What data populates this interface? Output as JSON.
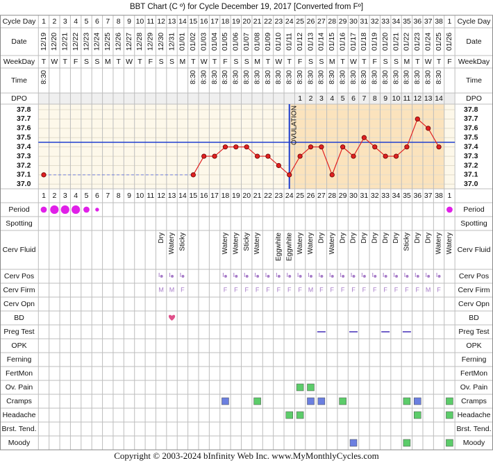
{
  "header": {
    "title": "BBT Chart (C º) for Cycle December 19, 2017  [Converted from Fº]"
  },
  "row_labels": [
    "Cycle Day",
    "Date",
    "WeekDay",
    "Time",
    "DPO",
    "Period",
    "Spotting",
    "Cerv Fluid",
    "Cerv Pos",
    "Cerv Firm",
    "Cerv Opn",
    "BD",
    "Preg Test",
    "OPK",
    "Ferning",
    "FertMon",
    "Ov. Pain",
    "Cramps",
    "Headache",
    "Brst. Tend.",
    "Moody"
  ],
  "columns": {
    "cycle_days": [
      1,
      2,
      3,
      4,
      5,
      6,
      7,
      8,
      9,
      10,
      11,
      12,
      13,
      14,
      15,
      16,
      17,
      18,
      19,
      20,
      21,
      22,
      23,
      24,
      25,
      26,
      27,
      28,
      29,
      30,
      31,
      32,
      33,
      34,
      35,
      36,
      37,
      38,
      1
    ],
    "dates": [
      "12/19",
      "12/20",
      "12/21",
      "12/22",
      "12/23",
      "12/24",
      "12/25",
      "12/26",
      "12/27",
      "12/28",
      "12/29",
      "12/30",
      "12/31",
      "01/01",
      "01/02",
      "01/03",
      "01/04",
      "01/05",
      "01/06",
      "01/07",
      "01/08",
      "01/09",
      "01/10",
      "01/11",
      "01/12",
      "01/13",
      "01/14",
      "01/15",
      "01/16",
      "01/17",
      "01/18",
      "01/19",
      "01/20",
      "01/21",
      "01/22",
      "01/23",
      "01/24",
      "01/25",
      "01/26"
    ],
    "weekdays": [
      "T",
      "W",
      "T",
      "F",
      "S",
      "S",
      "M",
      "T",
      "W",
      "T",
      "F",
      "S",
      "S",
      "M",
      "T",
      "W",
      "T",
      "F",
      "S",
      "S",
      "M",
      "T",
      "W",
      "T",
      "F",
      "S",
      "S",
      "M",
      "T",
      "W",
      "T",
      "F",
      "S",
      "S",
      "M",
      "T",
      "W",
      "T",
      "F"
    ],
    "time": [
      "8:30",
      null,
      null,
      null,
      null,
      null,
      null,
      null,
      null,
      null,
      null,
      null,
      null,
      null,
      "8:30",
      "8:30",
      "8:30",
      "8:30",
      "8:30",
      "8:30",
      "8:30",
      "8:30",
      "8:30",
      "8:30",
      "8:30",
      "8:30",
      "8:30",
      "8:30",
      "8:30",
      "8:30",
      "8:30",
      "8:30",
      "8:30",
      "8:30",
      "8:30",
      "8:30",
      "8:30",
      "8:30",
      null
    ],
    "dpo": [
      null,
      null,
      null,
      null,
      null,
      null,
      null,
      null,
      null,
      null,
      null,
      null,
      null,
      null,
      null,
      null,
      null,
      null,
      null,
      null,
      null,
      null,
      null,
      null,
      1,
      2,
      3,
      4,
      5,
      6,
      7,
      8,
      9,
      10,
      11,
      12,
      13,
      14,
      null
    ]
  },
  "temperature": {
    "values": [
      37.1,
      null,
      null,
      null,
      null,
      null,
      null,
      null,
      null,
      null,
      null,
      null,
      null,
      null,
      37.1,
      37.3,
      37.3,
      37.4,
      37.4,
      37.4,
      37.3,
      37.3,
      37.2,
      37.1,
      37.3,
      37.4,
      37.4,
      37.1,
      37.4,
      37.3,
      37.5,
      37.4,
      37.3,
      37.3,
      37.4,
      37.7,
      37.6,
      37.4,
      null
    ],
    "ylim": [
      36.95,
      37.86
    ],
    "yticks": [
      37.8,
      37.7,
      37.6,
      37.5,
      37.4,
      37.3,
      37.2,
      37.1,
      {
        "value": 37,
        "label": "37.0"
      }
    ],
    "coverline": 37.45,
    "ovulation_label": "OVULATION",
    "color": "#e02020"
  },
  "observations": {
    "period": [
      2,
      3,
      3,
      3,
      2,
      1,
      null,
      null,
      null,
      null,
      null,
      null,
      null,
      null,
      null,
      null,
      null,
      null,
      null,
      null,
      null,
      null,
      null,
      null,
      null,
      null,
      null,
      null,
      null,
      null,
      null,
      null,
      null,
      null,
      null,
      null,
      null,
      null,
      2
    ],
    "cerv_fluid": [
      null,
      null,
      null,
      null,
      null,
      null,
      null,
      null,
      null,
      null,
      null,
      "Dry",
      "Watery",
      "Sticky",
      null,
      null,
      null,
      "Watery",
      "Watery",
      "Sticky",
      "Watery",
      null,
      "Eggwhite",
      "Eggwhite",
      "Watery",
      "Watery",
      "Dry",
      "Watery",
      "Dry",
      "Dry",
      "Dry",
      "Dry",
      "Dry",
      "Dry",
      "Sticky",
      "Dry",
      "Dry",
      "Watery",
      "Watery"
    ],
    "cerv_pos": [
      null,
      null,
      null,
      null,
      null,
      null,
      null,
      null,
      null,
      null,
      null,
      true,
      true,
      true,
      null,
      null,
      null,
      true,
      true,
      true,
      true,
      true,
      true,
      true,
      true,
      true,
      true,
      true,
      true,
      true,
      true,
      true,
      true,
      true,
      true,
      true,
      true,
      true,
      null
    ],
    "cerv_firm": [
      null,
      null,
      null,
      null,
      null,
      null,
      null,
      null,
      null,
      null,
      null,
      "M",
      "M",
      "F",
      null,
      null,
      null,
      "F",
      "F",
      "F",
      "F",
      "F",
      "F",
      "F",
      "F",
      "M",
      "F",
      "F",
      "F",
      "F",
      "F",
      "F",
      "F",
      "F",
      "F",
      "F",
      "M",
      "F",
      null
    ],
    "bd": [
      null,
      null,
      null,
      null,
      null,
      null,
      null,
      null,
      null,
      null,
      null,
      null,
      true,
      null,
      null,
      null,
      null,
      null,
      null,
      null,
      null,
      null,
      null,
      null,
      null,
      null,
      null,
      null,
      null,
      null,
      null,
      null,
      null,
      null,
      null,
      null,
      null,
      null,
      null
    ],
    "preg_test": [
      null,
      null,
      null,
      null,
      null,
      null,
      null,
      null,
      null,
      null,
      null,
      null,
      null,
      null,
      null,
      null,
      null,
      null,
      null,
      null,
      null,
      null,
      null,
      null,
      null,
      null,
      true,
      null,
      null,
      true,
      null,
      null,
      true,
      null,
      true,
      null,
      null,
      null,
      null
    ],
    "ov_pain": [
      null,
      null,
      null,
      null,
      null,
      null,
      null,
      null,
      null,
      null,
      null,
      null,
      null,
      null,
      null,
      null,
      null,
      null,
      null,
      null,
      null,
      null,
      null,
      null,
      "#5ccc6a",
      "#5ccc6a",
      null,
      null,
      null,
      null,
      null,
      null,
      null,
      null,
      null,
      null,
      null,
      null,
      null
    ],
    "cramps": [
      null,
      null,
      null,
      null,
      null,
      null,
      null,
      null,
      null,
      null,
      null,
      null,
      null,
      null,
      null,
      null,
      null,
      "#6b7fe0",
      null,
      null,
      "#5ccc6a",
      null,
      null,
      null,
      null,
      "#6b7fe0",
      "#6b7fe0",
      null,
      "#5ccc6a",
      null,
      null,
      null,
      null,
      null,
      "#5ccc6a",
      "#6b7fe0",
      null,
      null,
      "#5ccc6a"
    ],
    "headache": [
      null,
      null,
      null,
      null,
      null,
      null,
      null,
      null,
      null,
      null,
      null,
      null,
      null,
      null,
      null,
      null,
      null,
      null,
      null,
      null,
      null,
      null,
      null,
      "#5ccc6a",
      "#5ccc6a",
      null,
      null,
      null,
      null,
      null,
      null,
      null,
      null,
      null,
      null,
      "#5ccc6a",
      null,
      null,
      "#5ccc6a"
    ],
    "moody": [
      null,
      null,
      null,
      null,
      null,
      null,
      null,
      null,
      null,
      null,
      null,
      null,
      null,
      null,
      null,
      null,
      null,
      null,
      null,
      null,
      null,
      null,
      null,
      null,
      null,
      null,
      null,
      null,
      null,
      "#6b7fe0",
      null,
      null,
      null,
      null,
      "#5ccc6a",
      null,
      null,
      null,
      "#5ccc6a"
    ]
  },
  "footer": {
    "text": "Copyright © 2003-2024 bInfinity Web Inc.    www.MyMonthlyCycles.com"
  }
}
